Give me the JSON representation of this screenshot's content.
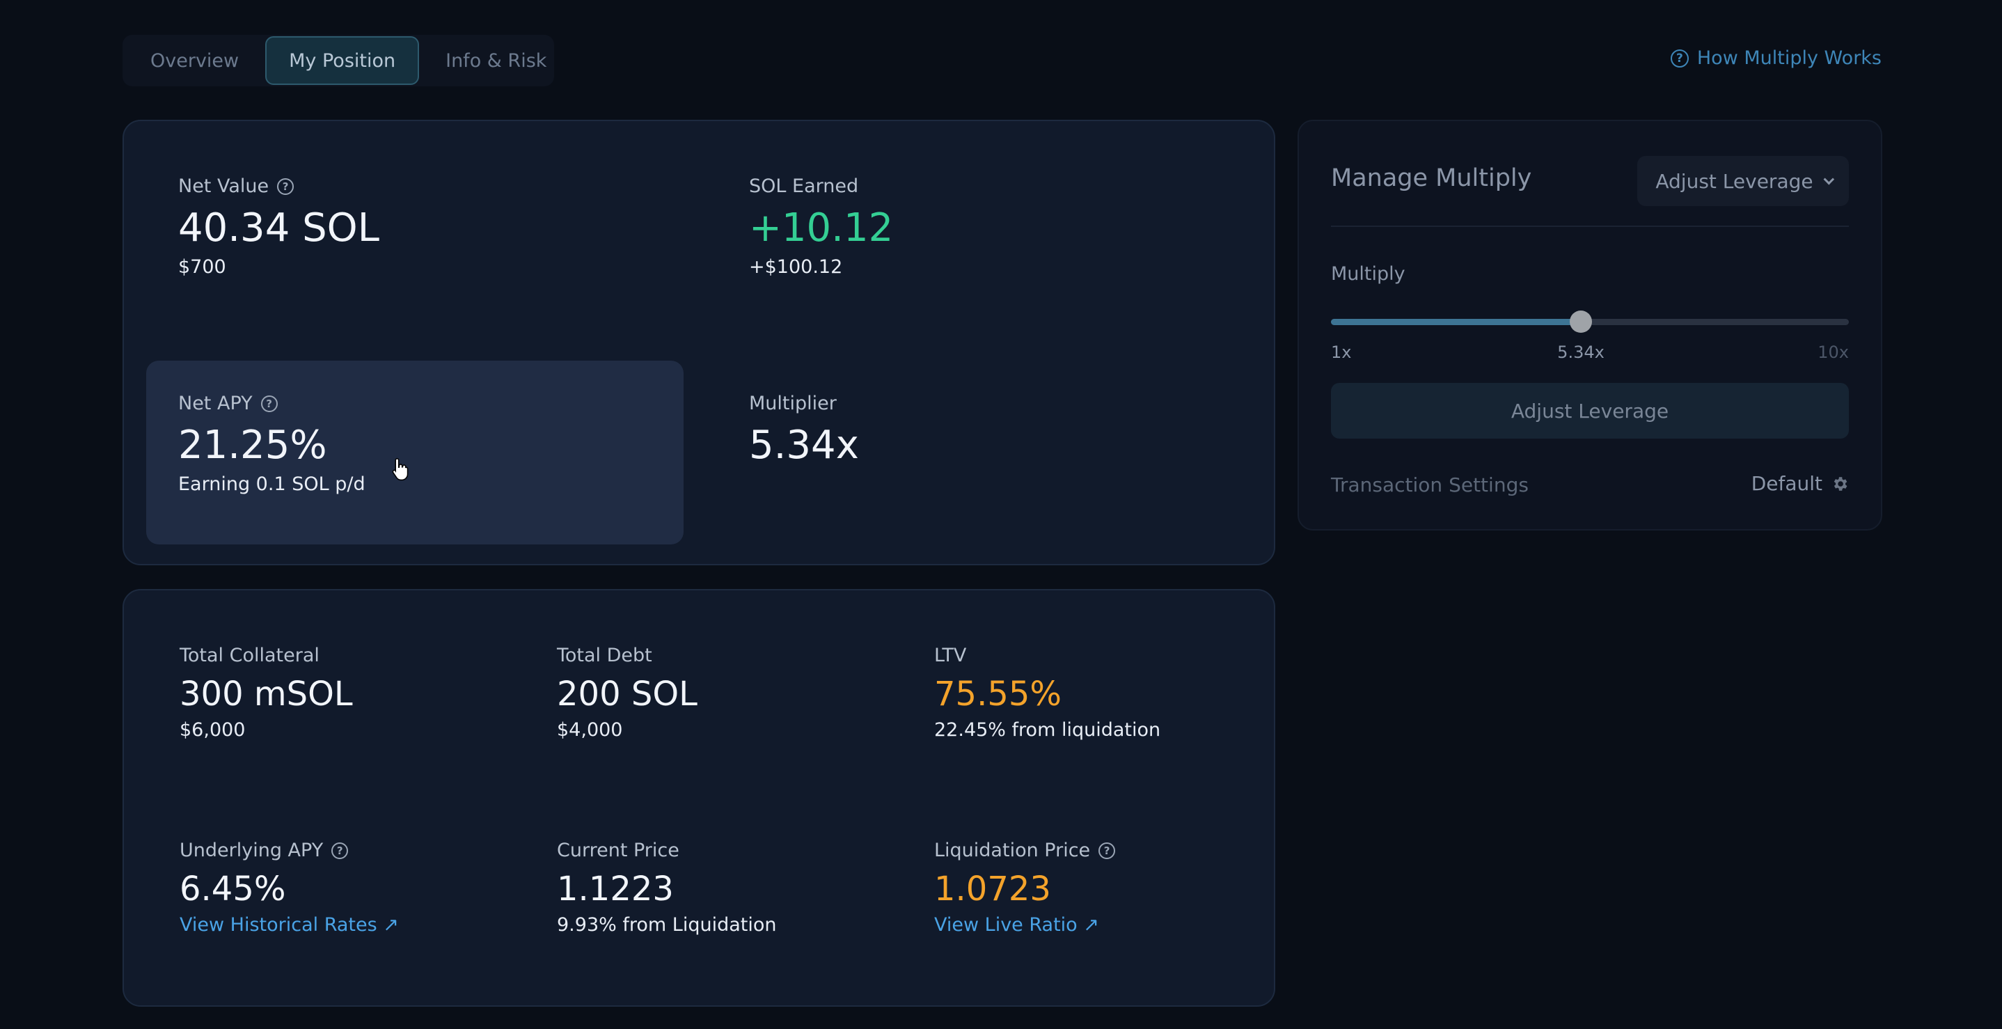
{
  "tabs": [
    {
      "label": "Overview",
      "active": false
    },
    {
      "label": "My Position",
      "active": true
    },
    {
      "label": "Info & Risk",
      "active": false
    }
  ],
  "help_link": {
    "label": "How Multiply Works",
    "icon": "question-circle-icon"
  },
  "position": {
    "net_value": {
      "label": "Net Value",
      "value": "40.34 SOL",
      "sub": "$700"
    },
    "sol_earned": {
      "label": "SOL Earned",
      "value": "+10.12",
      "sub": "+$100.12"
    },
    "net_apy": {
      "label": "Net APY",
      "value": "21.25%",
      "sub": "Earning 0.1 SOL p/d"
    },
    "multiplier": {
      "label": "Multiplier",
      "value": "5.34x"
    }
  },
  "details": {
    "total_collateral": {
      "label": "Total Collateral",
      "value": "300 mSOL",
      "sub": "$6,000"
    },
    "total_debt": {
      "label": "Total Debt",
      "value": "200 SOL",
      "sub": "$4,000"
    },
    "ltv": {
      "label": "LTV",
      "value": "75.55%",
      "sub": "22.45% from liquidation"
    },
    "underlying_apy": {
      "label": "Underlying APY",
      "value": "6.45%",
      "link": "View Historical Rates ↗"
    },
    "current_price": {
      "label": "Current Price",
      "value": "1.1223",
      "sub": "9.93% from Liquidation"
    },
    "liquidation_price": {
      "label": "Liquidation Price",
      "value": "1.0723",
      "link": "View Live Ratio ↗"
    }
  },
  "manage": {
    "title": "Manage Multiply",
    "mode_dropdown": "Adjust Leverage",
    "multiply_label": "Multiply",
    "slider": {
      "min_label": "1x",
      "max_label": "10x",
      "current_label": "5.34x",
      "min": 1,
      "max": 10,
      "value": 5.34
    },
    "submit_label": "Adjust Leverage",
    "tx_settings_label": "Transaction Settings",
    "tx_settings_value": "Default"
  },
  "colors": {
    "accent_green": "#34cf94",
    "accent_orange": "#f4a32b",
    "link_blue": "#4aa3e6"
  }
}
